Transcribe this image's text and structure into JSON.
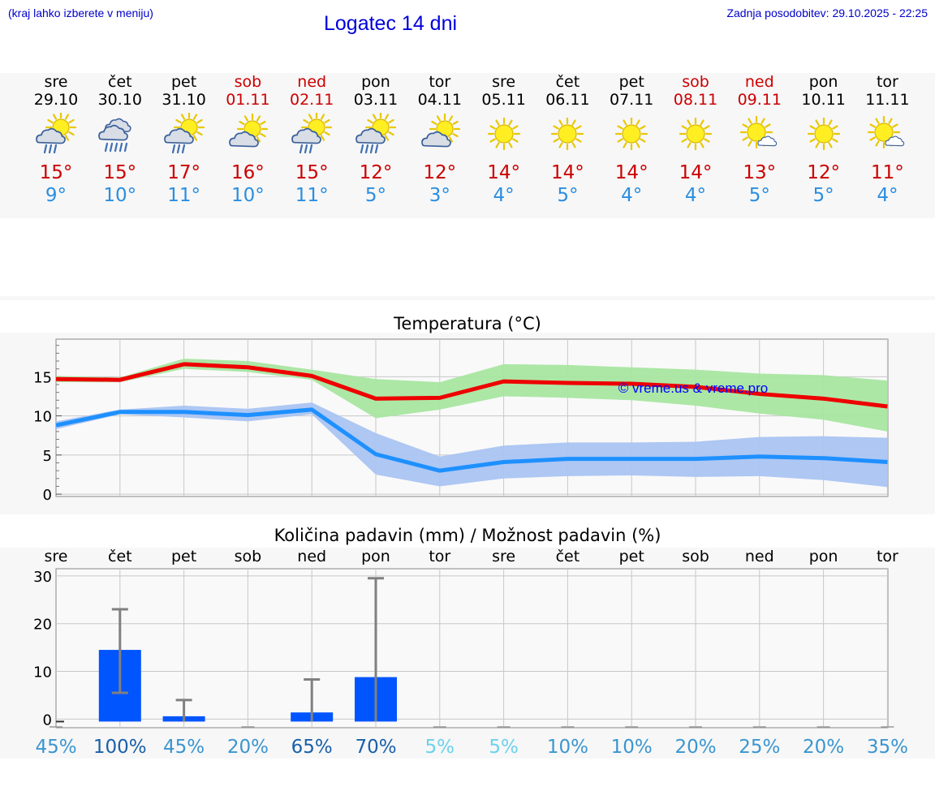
{
  "header": {
    "left_note": "(kraj lahko izberete v meniju)",
    "title": "Logatec 14 dni",
    "last_update": "Zadnja posodobitev: 29.10.2025 - 22:25"
  },
  "days": [
    {
      "name": "sre",
      "date": "29.10",
      "weekend": false,
      "icon": "sun-cloud-rain",
      "tmax": "15°",
      "tmin": "9°"
    },
    {
      "name": "čet",
      "date": "30.10",
      "weekend": false,
      "icon": "cloud-heavy-rain",
      "tmax": "15°",
      "tmin": "10°"
    },
    {
      "name": "pet",
      "date": "31.10",
      "weekend": false,
      "icon": "sun-cloud-rain",
      "tmax": "17°",
      "tmin": "11°"
    },
    {
      "name": "sob",
      "date": "01.11",
      "weekend": true,
      "icon": "sun-cloud",
      "tmax": "16°",
      "tmin": "10°"
    },
    {
      "name": "ned",
      "date": "02.11",
      "weekend": true,
      "icon": "sun-cloud-rain",
      "tmax": "15°",
      "tmin": "11°"
    },
    {
      "name": "pon",
      "date": "03.11",
      "weekend": false,
      "icon": "sun-cloud-heavy-rain",
      "tmax": "12°",
      "tmin": "5°"
    },
    {
      "name": "tor",
      "date": "04.11",
      "weekend": false,
      "icon": "sun-cloud",
      "tmax": "12°",
      "tmin": "3°"
    },
    {
      "name": "sre",
      "date": "05.11",
      "weekend": false,
      "icon": "sun",
      "tmax": "14°",
      "tmin": "4°"
    },
    {
      "name": "čet",
      "date": "06.11",
      "weekend": false,
      "icon": "sun",
      "tmax": "14°",
      "tmin": "5°"
    },
    {
      "name": "pet",
      "date": "07.11",
      "weekend": false,
      "icon": "sun",
      "tmax": "14°",
      "tmin": "4°"
    },
    {
      "name": "sob",
      "date": "08.11",
      "weekend": true,
      "icon": "sun",
      "tmax": "14°",
      "tmin": "4°"
    },
    {
      "name": "ned",
      "date": "09.11",
      "weekend": true,
      "icon": "sun-small-cloud",
      "tmax": "13°",
      "tmin": "5°"
    },
    {
      "name": "pon",
      "date": "10.11",
      "weekend": false,
      "icon": "sun",
      "tmax": "12°",
      "tmin": "5°"
    },
    {
      "name": "tor",
      "date": "11.11",
      "weekend": false,
      "icon": "sun-small-cloud",
      "tmax": "11°",
      "tmin": "4°"
    }
  ],
  "colors": {
    "tmax": "#cc0000",
    "tmin": "#2a8ee0",
    "max_line": "#ee0000",
    "max_band": "#a8e6a0",
    "min_line": "#1e90ff",
    "min_band": "#aac4f2",
    "bar": "#0055ff",
    "whisker": "#808080",
    "watermark": "#0000ff"
  },
  "chart_data": [
    {
      "type": "line",
      "title": "Temperatura (°C)",
      "watermark": "© vreme.us & vreme.pro",
      "x_points": [
        0,
        1,
        2,
        3,
        4,
        5,
        6,
        7,
        8,
        9,
        10,
        11,
        12,
        13
      ],
      "yticks": [
        "0",
        "5",
        "10",
        "15"
      ],
      "ylim": [
        -0.3,
        19.8
      ],
      "series": [
        {
          "name": "max",
          "values": [
            14.7,
            14.6,
            16.6,
            16.2,
            15.1,
            12.2,
            12.3,
            14.4,
            14.2,
            14.1,
            13.7,
            12.8,
            12.2,
            11.2
          ],
          "band_low": [
            14.3,
            14.3,
            16.0,
            15.6,
            14.6,
            9.7,
            10.8,
            12.5,
            12.3,
            12.0,
            11.3,
            10.3,
            9.5,
            8.0
          ],
          "band_high": [
            15.1,
            14.9,
            17.3,
            17.0,
            15.9,
            14.7,
            14.3,
            16.6,
            16.5,
            16.2,
            15.9,
            15.4,
            15.2,
            14.5
          ]
        },
        {
          "name": "min",
          "values": [
            8.8,
            10.5,
            10.5,
            10.1,
            10.8,
            5.1,
            3.0,
            4.1,
            4.5,
            4.5,
            4.5,
            4.8,
            4.6,
            4.1
          ],
          "band_low": [
            8.3,
            10.2,
            9.8,
            9.3,
            10.2,
            2.5,
            1.0,
            2.0,
            2.3,
            2.4,
            2.2,
            2.3,
            1.8,
            0.9
          ],
          "band_high": [
            9.3,
            10.8,
            11.3,
            10.9,
            11.7,
            7.8,
            4.8,
            6.2,
            6.6,
            6.6,
            6.7,
            7.3,
            7.4,
            7.2
          ]
        }
      ]
    },
    {
      "type": "bar",
      "title": "Količina padavin (mm) / Možnost padavin (%)",
      "categories": [
        "sre",
        "čet",
        "pet",
        "sob",
        "ned",
        "pon",
        "tor",
        "sre",
        "čet",
        "pet",
        "sob",
        "ned",
        "pon",
        "tor"
      ],
      "values": [
        0,
        14.5,
        0.6,
        0,
        1.4,
        8.8,
        0,
        0,
        0,
        0,
        0,
        0,
        0,
        0
      ],
      "error_low": [
        0,
        5.5,
        0,
        0,
        0,
        0,
        0,
        0,
        0,
        0,
        0,
        0,
        0,
        0
      ],
      "error_high": [
        0,
        23,
        4,
        0,
        8.3,
        29.5,
        0,
        0,
        0,
        0,
        0,
        0,
        0,
        0
      ],
      "probability": [
        "45%",
        "100%",
        "45%",
        "20%",
        "65%",
        "70%",
        "5%",
        "5%",
        "10%",
        "10%",
        "20%",
        "25%",
        "20%",
        "35%"
      ],
      "probability_colors": [
        "#3a96d0",
        "#1a60a8",
        "#3a96d0",
        "#3a96d0",
        "#1a60a8",
        "#1a60a8",
        "#6ad3ea",
        "#6ad3ea",
        "#3a96d0",
        "#3a96d0",
        "#3a96d0",
        "#3a96d0",
        "#3a96d0",
        "#3a96d0"
      ],
      "yticks": [
        "0",
        "10",
        "20",
        "30"
      ],
      "ylim": [
        -1.8,
        31.5
      ]
    }
  ]
}
